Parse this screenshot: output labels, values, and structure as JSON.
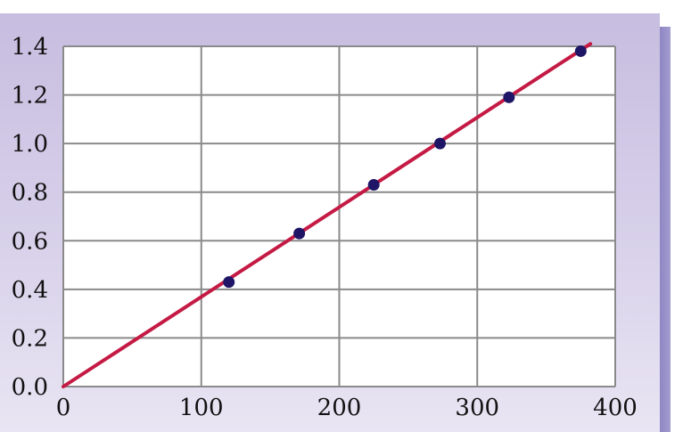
{
  "chart_data": {
    "type": "scatter",
    "title": "",
    "xlabel": "",
    "ylabel": "",
    "xlim": [
      0,
      400
    ],
    "ylim": [
      0.0,
      1.4
    ],
    "x_ticks": [
      "0",
      "100",
      "200",
      "300",
      "400"
    ],
    "y_ticks": [
      "0.0",
      "0.2",
      "0.4",
      "0.6",
      "0.8",
      "1.0",
      "1.2",
      "1.4"
    ],
    "grid": true,
    "series": [
      {
        "points": [
          {
            "x": 120,
            "y": 0.43
          },
          {
            "x": 171,
            "y": 0.63
          },
          {
            "x": 225,
            "y": 0.83
          },
          {
            "x": 273,
            "y": 1.0
          },
          {
            "x": 323,
            "y": 1.19
          },
          {
            "x": 375,
            "y": 1.38
          }
        ]
      }
    ],
    "fit_line": {
      "from": [
        0,
        0.0
      ],
      "to": [
        382,
        1.41
      ]
    },
    "colors": {
      "points": "#1e1566",
      "fit_line": "#c41a44",
      "grid": "#8a8a8a",
      "plot_background": "#ffffff"
    }
  }
}
